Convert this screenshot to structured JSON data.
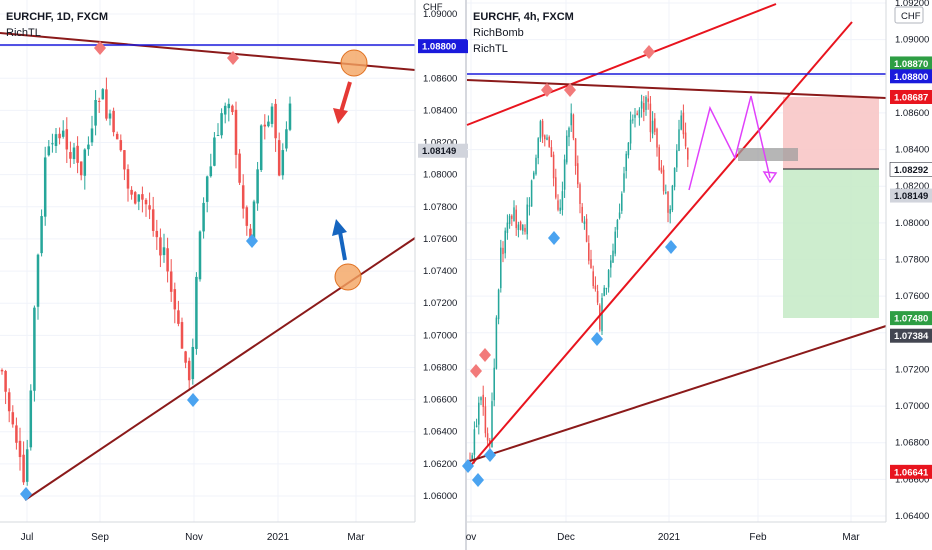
{
  "chart_data": [
    {
      "type": "candlestick",
      "title": "EURCHF, 1D, FXCM",
      "indicators": [
        "RichTL"
      ],
      "currency": "CHF",
      "x_ticks": [
        "Jul",
        "Sep",
        "Nov",
        "2021",
        "Mar"
      ],
      "y_ticks": [
        "1.06000",
        "1.06200",
        "1.06400",
        "1.06600",
        "1.06800",
        "1.07000",
        "1.07200",
        "1.07400",
        "1.07600",
        "1.07800",
        "1.08000",
        "1.08200",
        "1.08400",
        "1.08600",
        "1.08800",
        "1.09000"
      ],
      "ylim": [
        1.059,
        1.0915
      ],
      "price_labels": [
        {
          "value": 1.088,
          "text": "1.08800",
          "style": "blue"
        },
        {
          "value": 1.08149,
          "text": "1.08149",
          "style": "gray"
        }
      ],
      "colors": {
        "up": "#26a69a",
        "down": "#ef5350",
        "resistance": "#8b1a1a",
        "level": "#1a1adc",
        "arrow_down": "#e53935",
        "arrow_up": "#1565c0",
        "circle": "#f4a460"
      }
    },
    {
      "type": "candlestick",
      "title": "EURCHF, 4h, FXCM",
      "indicators": [
        "RichBomb",
        "RichTL"
      ],
      "currency": "CHF",
      "x_ticks": [
        "ov",
        "Dec",
        "2021",
        "Feb",
        "Mar"
      ],
      "y_ticks": [
        "1.06400",
        "1.06600",
        "1.06800",
        "1.07000",
        "1.07200",
        "1.07400",
        "1.07600",
        "1.07800",
        "1.08000",
        "1.08200",
        "1.08400",
        "1.08600",
        "1.08800",
        "1.09000",
        "1.09200"
      ],
      "ylim": [
        1.0637,
        1.0926
      ],
      "price_labels": [
        {
          "value": 1.0887,
          "text": "1.08870",
          "style": "green"
        },
        {
          "value": 1.088,
          "text": "1.08800",
          "style": "blue"
        },
        {
          "value": 1.08687,
          "text": "1.08687",
          "style": "red"
        },
        {
          "value": 1.08292,
          "text": "1.08292",
          "style": "white"
        },
        {
          "value": 1.08149,
          "text": "1.08149",
          "style": "gray"
        },
        {
          "value": 1.0748,
          "text": "1.07480",
          "style": "green"
        },
        {
          "value": 1.07384,
          "text": "1.07384",
          "style": "dark"
        },
        {
          "value": 1.06641,
          "text": "1.06641",
          "style": "red"
        }
      ],
      "trade": {
        "entry": 1.08292,
        "stop": 1.08687,
        "target": 1.0748
      },
      "colors": {
        "up": "#26a69a",
        "down": "#ef5350",
        "channel": "#e8141e",
        "support": "#8b1a1a",
        "level": "#1a1adc",
        "projection": "#e040fb",
        "stop_zone": "#f8c6c6",
        "target_zone": "#c8ebc9"
      }
    }
  ]
}
